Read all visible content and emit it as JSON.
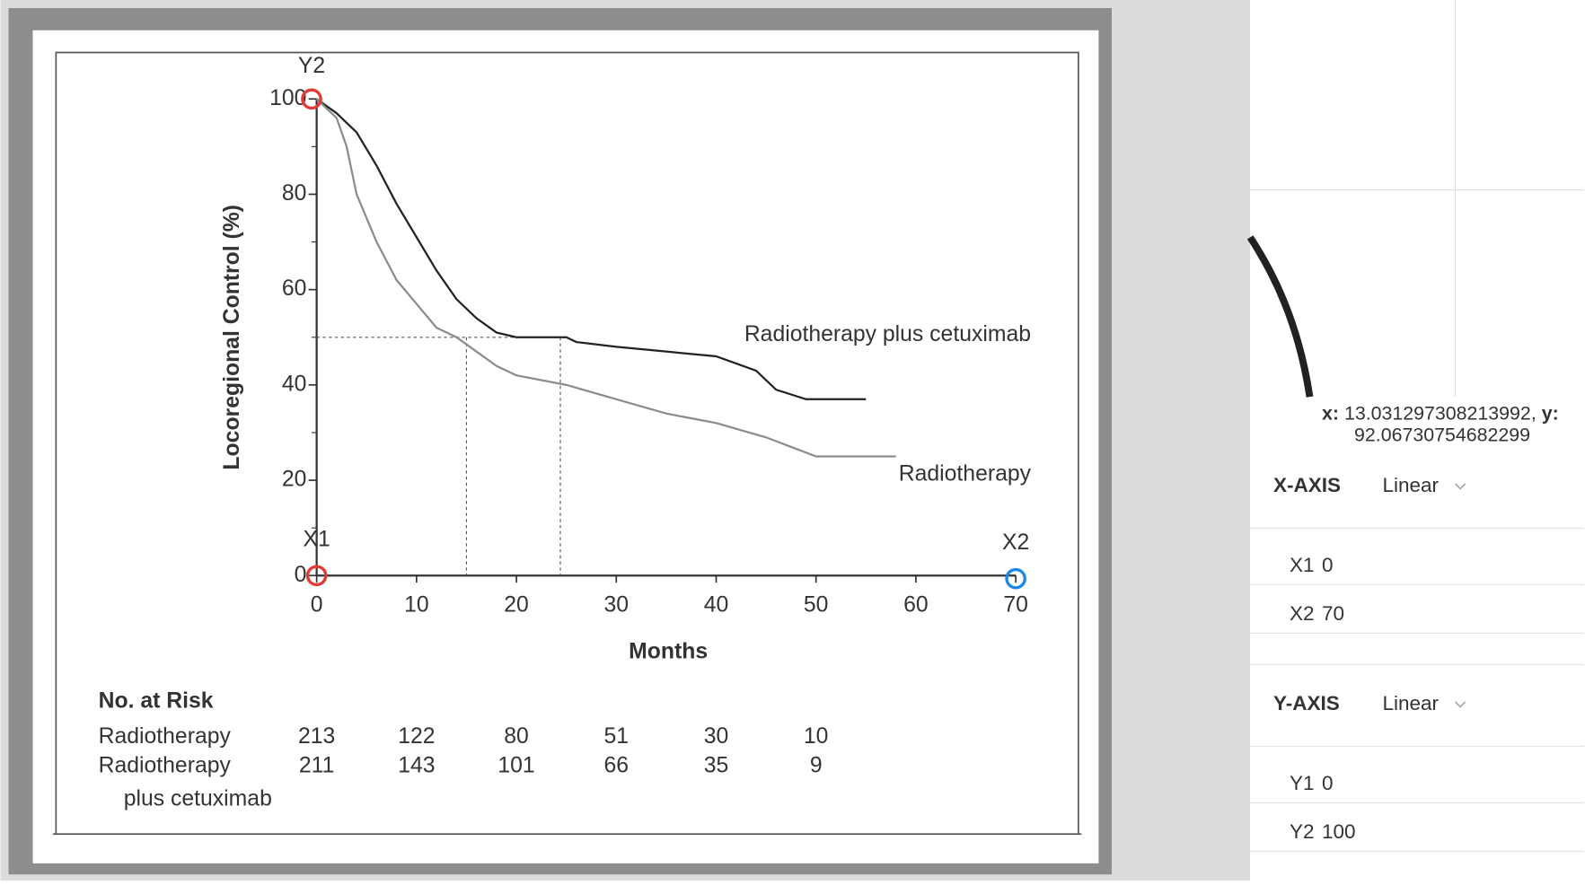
{
  "plot": {
    "type": "line",
    "y_label": "Locoregional Control (%)",
    "x_label": "Months",
    "xlim": [
      0,
      70
    ],
    "ylim": [
      0,
      100
    ],
    "xticks": [
      0,
      10,
      20,
      30,
      40,
      50,
      60,
      70
    ],
    "yticks": [
      0,
      20,
      40,
      60,
      80,
      100
    ],
    "series": [
      {
        "name": "Radiotherapy plus cetuximab",
        "color": "#222222",
        "x": [
          0,
          2,
          4,
          6,
          8,
          10,
          12,
          14,
          16,
          18,
          20,
          25,
          26,
          30,
          35,
          40,
          44,
          46,
          49,
          55
        ],
        "values": [
          100,
          97,
          93,
          86,
          78,
          71,
          64,
          58,
          54,
          51,
          50,
          50,
          49,
          48,
          47,
          46,
          43,
          39,
          37,
          37
        ]
      },
      {
        "name": "Radiotherapy",
        "color": "#8c8c8c",
        "x": [
          0,
          2,
          3,
          4,
          6,
          8,
          10,
          12,
          14,
          16,
          18,
          20,
          25,
          30,
          35,
          40,
          45,
          50,
          58
        ],
        "values": [
          100,
          96,
          90,
          80,
          70,
          62,
          57,
          52,
          50,
          47,
          44,
          42,
          40,
          37,
          34,
          32,
          29,
          25,
          25
        ]
      }
    ],
    "median_reference": {
      "y": 50,
      "x": [
        15,
        24.4
      ]
    }
  },
  "risk_table": {
    "title": "No. at Risk",
    "rows": [
      {
        "label": [
          "Radiotherapy"
        ],
        "counts": [
          213,
          122,
          80,
          51,
          30,
          10
        ]
      },
      {
        "label": [
          "Radiotherapy",
          "plus cetuximab"
        ],
        "counts": [
          211,
          143,
          101,
          66,
          35,
          9
        ]
      }
    ]
  },
  "markers": {
    "x1_color": "#e53935",
    "x2_color": "#1e88e5",
    "y2_color": "#e53935"
  },
  "cursor": {
    "x_label": "x:",
    "x": 13.031297308213992,
    "y_label": "y:",
    "y": 92.06730754682299
  },
  "x_axis": {
    "title": "X-AXIS",
    "scale": "Linear",
    "points": [
      {
        "label": "X1",
        "value": 0
      },
      {
        "label": "X2",
        "value": 70
      }
    ]
  },
  "y_axis": {
    "title": "Y-AXIS",
    "scale": "Linear",
    "points": [
      {
        "label": "Y1",
        "value": 0
      },
      {
        "label": "Y2",
        "value": 100
      }
    ]
  }
}
